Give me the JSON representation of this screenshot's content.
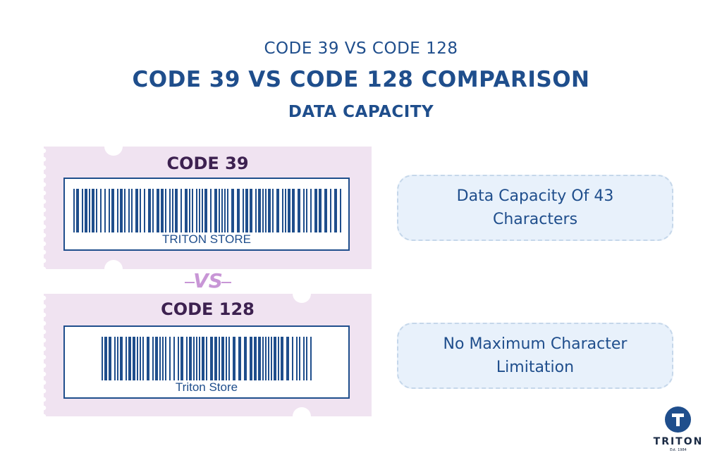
{
  "header": {
    "subtitle": "CODE 39 VS CODE 128",
    "title": "CODE 39 VS CODE 128 COMPARISON",
    "section": "DATA CAPACITY"
  },
  "cards": [
    {
      "title": "CODE 39",
      "barcode_text": "TRITON STORE"
    },
    {
      "title": "CODE 128",
      "barcode_text": "Triton Store"
    }
  ],
  "vs_label": "VS",
  "info": [
    {
      "text": "Data Capacity Of 43 Characters"
    },
    {
      "text": "No Maximum Character Limitation"
    }
  ],
  "logo": {
    "name": "TRITON",
    "established": "Est. 1984"
  },
  "colors": {
    "primary_blue": "#1f4e8c",
    "card_background": "#f0e3f1",
    "card_title": "#3d2150",
    "vs_accent": "#c896d6",
    "info_background": "#e8f1fb"
  }
}
